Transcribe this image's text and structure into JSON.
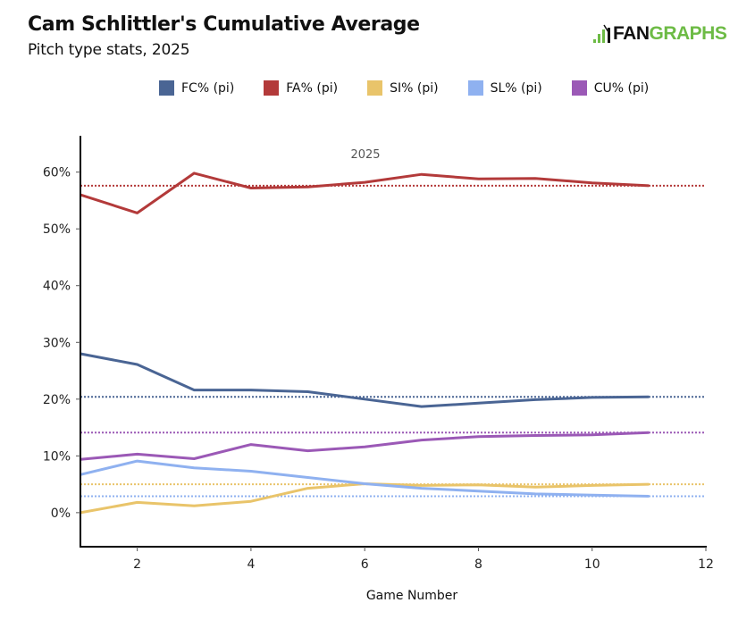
{
  "header": {
    "title": "Cam Schlittler's Cumulative Average",
    "subtitle": "Pitch type stats, 2025",
    "logo": {
      "prefix_icon": "batter-bars-icon",
      "text_dark": "FAN",
      "text_green": "GRAPHS",
      "green": "#6dbb45"
    }
  },
  "chart_data": {
    "type": "line",
    "title": "Cam Schlittler's Cumulative Average",
    "subtitle": "Pitch type stats, 2025",
    "annotation": "2025",
    "xlabel": "Game Number",
    "ylabel": "",
    "xlim": [
      1,
      12
    ],
    "ylim": [
      -6,
      66.4
    ],
    "xticks": [
      2,
      4,
      6,
      8,
      10,
      12
    ],
    "yticks": [
      0,
      10,
      20,
      30,
      40,
      50,
      60
    ],
    "ytick_labels": [
      "0%",
      "10%",
      "20%",
      "30%",
      "40%",
      "50%",
      "60%"
    ],
    "grid": false,
    "legend_position": "top",
    "x": [
      1,
      2,
      3,
      4,
      5,
      6,
      7,
      8,
      9,
      10,
      11
    ],
    "series": [
      {
        "name": "FC% (pi)",
        "color": "#4a6594",
        "average": 20.4,
        "values": [
          28.0,
          26.1,
          21.6,
          21.6,
          21.3,
          20.0,
          18.7,
          19.3,
          19.9,
          20.3,
          20.4
        ]
      },
      {
        "name": "FA% (pi)",
        "color": "#b33a3a",
        "average": 57.6,
        "values": [
          56.0,
          52.8,
          59.8,
          57.2,
          57.4,
          58.2,
          59.6,
          58.8,
          58.9,
          58.1,
          57.6
        ]
      },
      {
        "name": "SI% (pi)",
        "color": "#e9c46a",
        "average": 5.0,
        "values": [
          0.0,
          1.8,
          1.2,
          2.0,
          4.3,
          5.1,
          4.8,
          4.9,
          4.5,
          4.8,
          5.0
        ]
      },
      {
        "name": "SL% (pi)",
        "color": "#8fb1f0",
        "average": 2.9,
        "values": [
          6.7,
          9.1,
          7.9,
          7.3,
          6.2,
          5.1,
          4.3,
          3.8,
          3.3,
          3.1,
          2.9
        ]
      },
      {
        "name": "CU% (pi)",
        "color": "#9b59b6",
        "average": 14.1,
        "values": [
          9.4,
          10.3,
          9.5,
          12.0,
          10.9,
          11.6,
          12.8,
          13.4,
          13.6,
          13.7,
          14.1
        ]
      }
    ]
  }
}
